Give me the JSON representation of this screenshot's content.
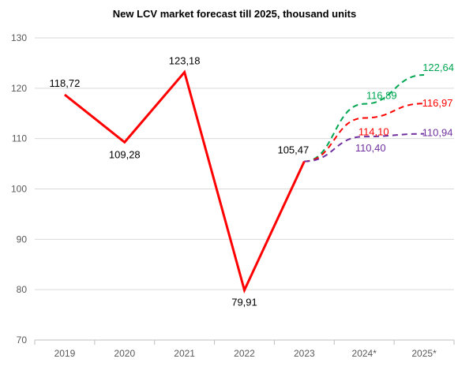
{
  "chart_data": {
    "type": "line",
    "title": "New LCV market forecast till 2025, thousand units",
    "categories": [
      "2019",
      "2020",
      "2021",
      "2022",
      "2023",
      "2024*",
      "2025*"
    ],
    "ylim": [
      70,
      130
    ],
    "yticks": [
      70,
      80,
      90,
      100,
      110,
      120,
      130
    ],
    "grid": true,
    "series": [
      {
        "values": [
          118.72,
          109.28,
          123.18,
          79.91,
          105.47,
          null,
          null
        ],
        "labels": [
          "118,72",
          "109,28",
          "123,18",
          "79,91",
          "105,47",
          "",
          ""
        ],
        "color": "#ff0000",
        "style": "solid"
      },
      {
        "values": [
          null,
          null,
          null,
          null,
          105.47,
          116.89,
          122.64
        ],
        "labels": [
          "",
          "",
          "",
          "",
          "",
          "116,89",
          "122,64"
        ],
        "color": "#00a651",
        "style": "dashed"
      },
      {
        "values": [
          null,
          null,
          null,
          null,
          105.47,
          114.1,
          116.97
        ],
        "labels": [
          "",
          "",
          "",
          "",
          "",
          "114,10",
          "116,97"
        ],
        "color": "#ff0000",
        "style": "dashed"
      },
      {
        "values": [
          null,
          null,
          null,
          null,
          105.47,
          110.4,
          110.94
        ],
        "labels": [
          "",
          "",
          "",
          "",
          "",
          "110,40",
          "110,94"
        ],
        "color": "#7030a0",
        "style": "dashed"
      }
    ]
  }
}
